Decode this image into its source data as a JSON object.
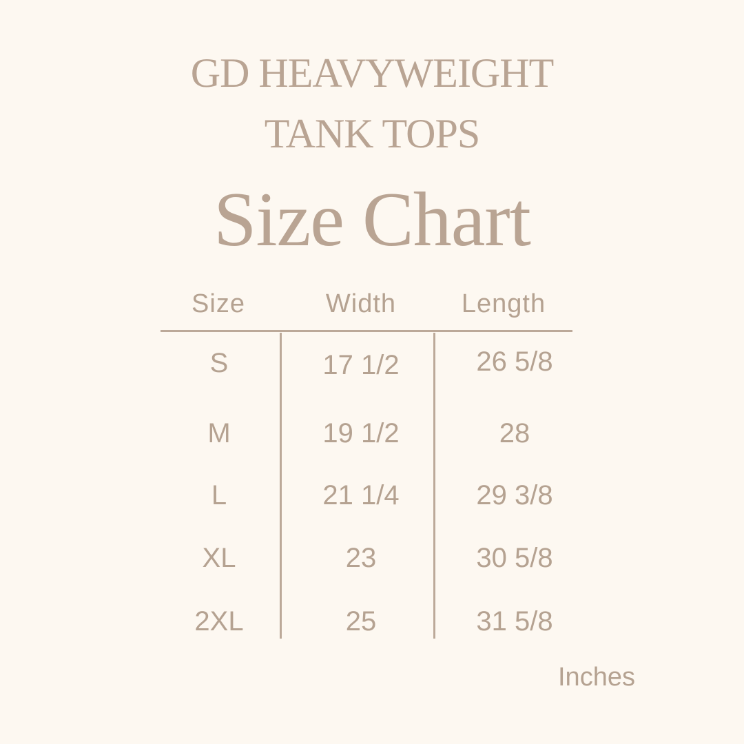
{
  "title_line1": "GD HEAVYWEIGHT",
  "title_line2": "TANK TOPS",
  "heading": "Size Chart",
  "table": {
    "headers": [
      "Size",
      "Width",
      "Length"
    ],
    "rows": [
      [
        "S",
        "17 1/2",
        "26 5/8"
      ],
      [
        "M",
        "19 1/2",
        "28"
      ],
      [
        "L",
        "21 1/4",
        "29 3/8"
      ],
      [
        "XL",
        "23",
        "30 5/8"
      ],
      [
        "2XL",
        "25",
        "31 5/8"
      ]
    ]
  },
  "unit_label": "Inches",
  "colors": {
    "background": "#fdf8f1",
    "text": "#b8a494"
  }
}
